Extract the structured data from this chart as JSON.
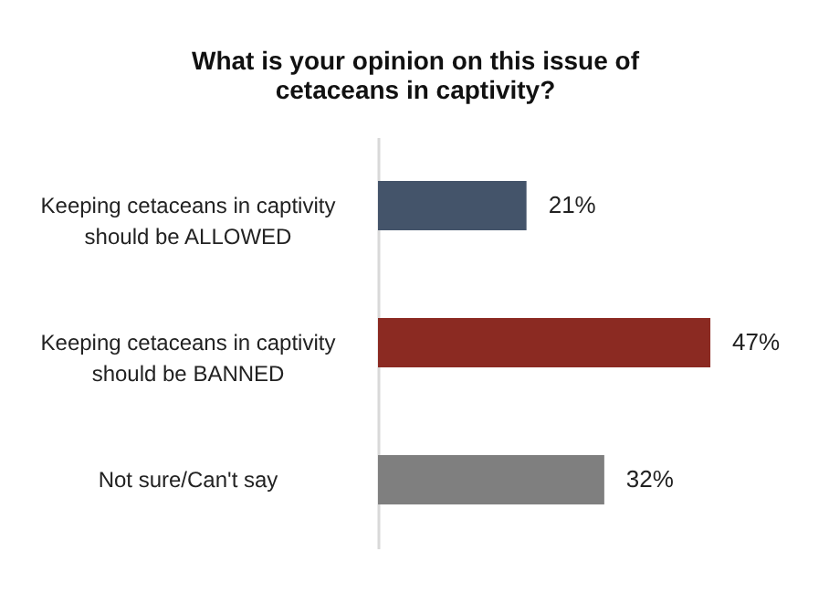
{
  "chart_data": {
    "type": "bar",
    "orientation": "horizontal",
    "title": "What is your opinion on this issue of cetaceans in captivity?",
    "categories": [
      "Keeping cetaceans in captivity should be ALLOWED",
      "Keeping cetaceans in captivity should be BANNED",
      "Not sure/Can't say"
    ],
    "values": [
      21,
      47,
      32
    ],
    "colors": [
      "#44546a",
      "#8b2a22",
      "#7f7f7f"
    ],
    "value_labels": [
      "21%",
      "47%",
      "32%"
    ]
  }
}
